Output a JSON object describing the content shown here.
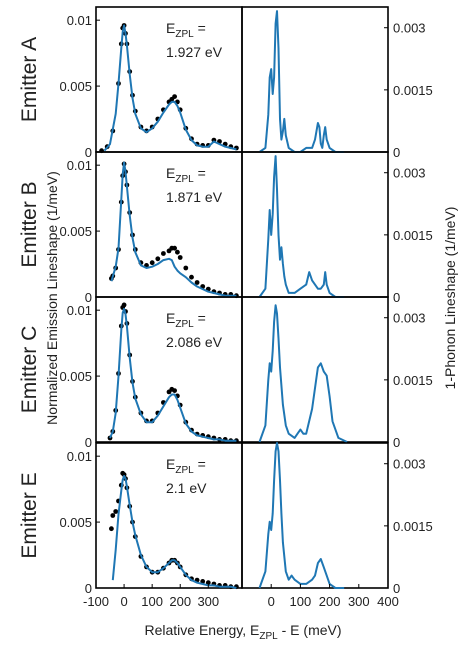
{
  "figure": {
    "ylabel_left": "Normalized Emission Lineshape (1/meV)",
    "ylabel_right": "1-Phonon Lineshape (1/meV)",
    "xlabel": {
      "pre": "Relative Energy, E",
      "sub": "ZPL",
      "post": " - E (meV)"
    },
    "left_xticks": [
      "-100",
      "0",
      "100",
      "200",
      "300"
    ],
    "right_xticks": [
      "0",
      "100",
      "200",
      "300",
      "400"
    ],
    "left_yticks": [
      "0",
      "0.005",
      "0.01"
    ],
    "right_yticks": [
      "0",
      "0.0015",
      "0.003"
    ],
    "colors": {
      "measured": "#000000",
      "fit": "#1f77b4",
      "phonon": "#1f77b4",
      "axes": "#000000"
    }
  },
  "chart_data": [
    {
      "type": "line",
      "panel": "Emitter A — emission lineshape",
      "row_label": "Emitter A",
      "annotation": {
        "label_pre": "E",
        "label_sub": "ZPL",
        "label_post": " =",
        "value": "1.927 eV"
      },
      "xlim": [
        -100,
        420
      ],
      "ylim": [
        0,
        0.011
      ],
      "series": [
        {
          "style": "dots",
          "x": [
            -80,
            -60,
            -40,
            -20,
            -10,
            -5,
            0,
            5,
            10,
            20,
            30,
            40,
            60,
            80,
            100,
            120,
            140,
            160,
            170,
            180,
            190,
            200,
            220,
            240,
            260,
            280,
            300,
            320,
            340,
            360,
            380,
            400
          ],
          "y": [
            0.0001,
            0.0004,
            0.0016,
            0.0052,
            0.0082,
            0.0094,
            0.0096,
            0.009,
            0.0082,
            0.0061,
            0.0043,
            0.0031,
            0.0019,
            0.0016,
            0.0019,
            0.0025,
            0.0032,
            0.0038,
            0.004,
            0.0042,
            0.0038,
            0.0032,
            0.0018,
            0.001,
            0.0006,
            0.0005,
            0.0005,
            0.0009,
            0.0008,
            0.0006,
            0.0004,
            0.0003
          ]
        },
        {
          "style": "line",
          "x": [
            -70,
            -50,
            -30,
            -20,
            -10,
            -5,
            0,
            5,
            10,
            20,
            30,
            40,
            60,
            80,
            100,
            120,
            140,
            160,
            170,
            180,
            190,
            200,
            220,
            240,
            260,
            280,
            300,
            320,
            340,
            360,
            380,
            400
          ],
          "y": [
            0.0001,
            0.0006,
            0.0029,
            0.0052,
            0.0079,
            0.0091,
            0.0096,
            0.009,
            0.0081,
            0.0059,
            0.0041,
            0.0029,
            0.0018,
            0.0015,
            0.0018,
            0.0023,
            0.003,
            0.0036,
            0.0038,
            0.0038,
            0.0035,
            0.003,
            0.0017,
            0.0009,
            0.0005,
            0.0004,
            0.0004,
            0.0008,
            0.0006,
            0.0004,
            0.0003,
            0.0002
          ]
        }
      ]
    },
    {
      "type": "line",
      "panel": "Emitter A — 1-phonon lineshape",
      "xlim": [
        -100,
        400
      ],
      "ylim": [
        0,
        0.0035
      ],
      "series": [
        {
          "style": "line",
          "x": [
            -40,
            -20,
            -10,
            -5,
            0,
            5,
            10,
            15,
            20,
            25,
            30,
            35,
            40,
            45,
            50,
            60,
            80,
            100,
            120,
            140,
            150,
            160,
            165,
            170,
            175,
            180,
            185,
            190,
            200,
            220,
            250
          ],
          "y": [
            0,
            0.0001,
            0.0009,
            0.0018,
            0.002,
            0.0014,
            0.0018,
            0.0031,
            0.0034,
            0.0025,
            0.0008,
            0.0003,
            0.0005,
            0.0008,
            0.0004,
            0.0001,
            0,
            0,
            0.0001,
            0.0001,
            0.0003,
            0.0007,
            0.0006,
            0.0002,
            0.0001,
            0.0004,
            0.0006,
            0.0003,
            0.0001,
            0,
            0
          ]
        }
      ]
    },
    {
      "type": "line",
      "panel": "Emitter B — emission lineshape",
      "row_label": "Emitter B",
      "annotation": {
        "label_pre": "E",
        "label_sub": "ZPL",
        "label_post": " =",
        "value": "1.871 eV"
      },
      "xlim": [
        -100,
        420
      ],
      "ylim": [
        0,
        0.011
      ],
      "series": [
        {
          "style": "dots",
          "x": [
            -45,
            -40,
            -30,
            -20,
            -10,
            -5,
            0,
            5,
            10,
            20,
            30,
            40,
            60,
            80,
            100,
            120,
            140,
            160,
            170,
            180,
            190,
            200,
            220,
            240,
            260,
            280,
            300,
            320,
            340,
            360,
            380,
            400
          ],
          "y": [
            0.0014,
            0.0016,
            0.0022,
            0.0036,
            0.0072,
            0.0092,
            0.0101,
            0.0095,
            0.0085,
            0.0064,
            0.0047,
            0.0036,
            0.0026,
            0.0024,
            0.0026,
            0.0029,
            0.0033,
            0.0035,
            0.0037,
            0.0037,
            0.0034,
            0.003,
            0.0022,
            0.0015,
            0.0011,
            0.0008,
            0.0006,
            0.0004,
            0.0003,
            0.0002,
            0.0002,
            0.0001
          ]
        },
        {
          "style": "line",
          "x": [
            -45,
            -30,
            -20,
            -10,
            -5,
            0,
            5,
            10,
            20,
            30,
            40,
            60,
            80,
            100,
            120,
            140,
            160,
            170,
            180,
            190,
            200,
            220,
            240,
            260,
            280,
            300,
            320,
            340,
            360,
            380,
            400
          ],
          "y": [
            0.0012,
            0.0023,
            0.0037,
            0.0074,
            0.0093,
            0.0102,
            0.0095,
            0.0084,
            0.0062,
            0.0045,
            0.0034,
            0.0024,
            0.0022,
            0.0023,
            0.0025,
            0.0028,
            0.0029,
            0.0028,
            0.0023,
            0.002,
            0.0018,
            0.0015,
            0.0011,
            0.0008,
            0.0006,
            0.0004,
            0.0003,
            0.0002,
            0.0001,
            0.0001,
            0.0001
          ]
        }
      ]
    },
    {
      "type": "line",
      "panel": "Emitter B — 1-phonon lineshape",
      "xlim": [
        -100,
        400
      ],
      "ylim": [
        0,
        0.0035
      ],
      "series": [
        {
          "style": "line",
          "x": [
            -40,
            -20,
            -10,
            -5,
            0,
            5,
            10,
            15,
            20,
            25,
            30,
            35,
            40,
            45,
            50,
            60,
            80,
            100,
            120,
            130,
            140,
            150,
            160,
            170,
            180,
            185,
            190,
            200,
            220,
            250
          ],
          "y": [
            0,
            0.0002,
            0.0014,
            0.0021,
            0.0015,
            0.002,
            0.0029,
            0.0034,
            0.0026,
            0.0015,
            0.0009,
            0.0012,
            0.0008,
            0.0005,
            0.0003,
            0.0001,
            0.0001,
            0.0002,
            0.0003,
            0.0006,
            0.0004,
            0.0003,
            0.0002,
            0.0002,
            0.0003,
            0.0006,
            0.0003,
            0.0001,
            0,
            0
          ]
        }
      ]
    },
    {
      "type": "line",
      "panel": "Emitter C — emission lineshape",
      "row_label": "Emitter C",
      "annotation": {
        "label_pre": "E",
        "label_sub": "ZPL",
        "label_post": " =",
        "value": "2.086 eV"
      },
      "xlim": [
        -100,
        420
      ],
      "ylim": [
        0,
        0.011
      ],
      "series": [
        {
          "style": "dots",
          "x": [
            -50,
            -40,
            -30,
            -20,
            -10,
            -5,
            0,
            5,
            10,
            20,
            30,
            40,
            60,
            80,
            100,
            120,
            140,
            160,
            170,
            180,
            190,
            200,
            220,
            240,
            260,
            280,
            300,
            320,
            340,
            360,
            380,
            400
          ],
          "y": [
            0.0003,
            0.0008,
            0.0024,
            0.0052,
            0.0088,
            0.0102,
            0.0104,
            0.0099,
            0.009,
            0.0066,
            0.0046,
            0.0034,
            0.0022,
            0.0016,
            0.0016,
            0.0022,
            0.003,
            0.0038,
            0.004,
            0.0039,
            0.0035,
            0.0028,
            0.0015,
            0.0009,
            0.0006,
            0.0005,
            0.0004,
            0.0003,
            0.0002,
            0.0002,
            0.0001,
            0.0001
          ]
        },
        {
          "style": "line",
          "x": [
            -50,
            -40,
            -30,
            -20,
            -10,
            -5,
            0,
            5,
            10,
            20,
            30,
            40,
            60,
            80,
            100,
            120,
            140,
            160,
            170,
            180,
            190,
            200,
            220,
            240,
            260,
            280,
            300,
            320,
            340,
            360,
            380,
            400
          ],
          "y": [
            0.0003,
            0.0008,
            0.0022,
            0.005,
            0.0085,
            0.0098,
            0.0101,
            0.0097,
            0.0088,
            0.0064,
            0.0045,
            0.0033,
            0.0021,
            0.0015,
            0.0015,
            0.002,
            0.0027,
            0.0034,
            0.0036,
            0.0036,
            0.0032,
            0.0026,
            0.0014,
            0.0008,
            0.0005,
            0.0004,
            0.0003,
            0.0002,
            0.0002,
            0.0001,
            0.0001,
            0.0001
          ]
        }
      ]
    },
    {
      "type": "line",
      "panel": "Emitter C — 1-phonon lineshape",
      "xlim": [
        -100,
        400
      ],
      "ylim": [
        0,
        0.0035
      ],
      "series": [
        {
          "style": "line",
          "x": [
            -40,
            -20,
            -10,
            -5,
            0,
            5,
            10,
            15,
            20,
            25,
            30,
            40,
            50,
            60,
            80,
            90,
            100,
            110,
            120,
            140,
            150,
            160,
            170,
            180,
            190,
            200,
            210,
            230,
            260
          ],
          "y": [
            0,
            0.0004,
            0.0015,
            0.0019,
            0.0017,
            0.0022,
            0.0029,
            0.0033,
            0.0031,
            0.0025,
            0.0018,
            0.0009,
            0.0004,
            0.0002,
            0.0001,
            0.0002,
            0.0003,
            0.0002,
            0.0002,
            0.0008,
            0.0013,
            0.0018,
            0.0019,
            0.0017,
            0.0016,
            0.0011,
            0.0005,
            0.0001,
            0
          ]
        }
      ]
    },
    {
      "type": "line",
      "panel": "Emitter E — emission lineshape",
      "row_label": "Emitter E",
      "annotation": {
        "label_pre": "E",
        "label_sub": "ZPL",
        "label_post": " =",
        "value": "2.1 eV"
      },
      "xlim": [
        -100,
        420
      ],
      "ylim": [
        0,
        0.011
      ],
      "series": [
        {
          "style": "dots",
          "x": [
            -45,
            -40,
            -30,
            -20,
            -10,
            -5,
            0,
            5,
            10,
            20,
            30,
            40,
            60,
            80,
            100,
            120,
            140,
            160,
            170,
            180,
            190,
            200,
            220,
            240,
            260,
            280,
            300,
            320,
            340,
            360,
            380,
            400
          ],
          "y": [
            0.0045,
            0.0055,
            0.0058,
            0.0066,
            0.0078,
            0.0087,
            0.0086,
            0.0083,
            0.0076,
            0.0062,
            0.005,
            0.0039,
            0.0024,
            0.0016,
            0.0012,
            0.0012,
            0.0015,
            0.0019,
            0.0021,
            0.0021,
            0.0019,
            0.0016,
            0.001,
            0.0007,
            0.0006,
            0.0005,
            0.0004,
            0.0003,
            0.0002,
            0.0002,
            0.0001,
            0.0001
          ]
        },
        {
          "style": "line",
          "x": [
            -40,
            -30,
            -20,
            -10,
            -5,
            0,
            5,
            10,
            20,
            30,
            40,
            60,
            80,
            100,
            120,
            140,
            160,
            170,
            180,
            190,
            200,
            220,
            240,
            260,
            280,
            300,
            320,
            340,
            360,
            380,
            400
          ],
          "y": [
            0.0006,
            0.0029,
            0.0056,
            0.0074,
            0.0082,
            0.0085,
            0.0083,
            0.0077,
            0.0063,
            0.005,
            0.004,
            0.0025,
            0.0016,
            0.0012,
            0.0012,
            0.0015,
            0.0019,
            0.0021,
            0.0021,
            0.0019,
            0.0016,
            0.001,
            0.0006,
            0.0004,
            0.0003,
            0.0002,
            0.0002,
            0.0001,
            0.0001,
            0.0001,
            0
          ]
        }
      ]
    },
    {
      "type": "line",
      "panel": "Emitter E — 1-phonon lineshape",
      "xlim": [
        -100,
        400
      ],
      "ylim": [
        0,
        0.0035
      ],
      "series": [
        {
          "style": "line",
          "x": [
            -40,
            -20,
            -10,
            -5,
            0,
            5,
            10,
            15,
            20,
            25,
            30,
            35,
            40,
            50,
            60,
            70,
            80,
            100,
            120,
            140,
            150,
            160,
            170,
            180,
            190,
            200,
            220,
            250
          ],
          "y": [
            0,
            0.0004,
            0.0013,
            0.0016,
            0.0014,
            0.0018,
            0.0026,
            0.0033,
            0.0035,
            0.0033,
            0.0026,
            0.0018,
            0.0011,
            0.0004,
            0.0002,
            0.0003,
            0.0002,
            0.0001,
            0.0001,
            0.0002,
            0.0003,
            0.0006,
            0.0007,
            0.0005,
            0.0003,
            0.0001,
            0,
            0
          ]
        }
      ]
    }
  ]
}
